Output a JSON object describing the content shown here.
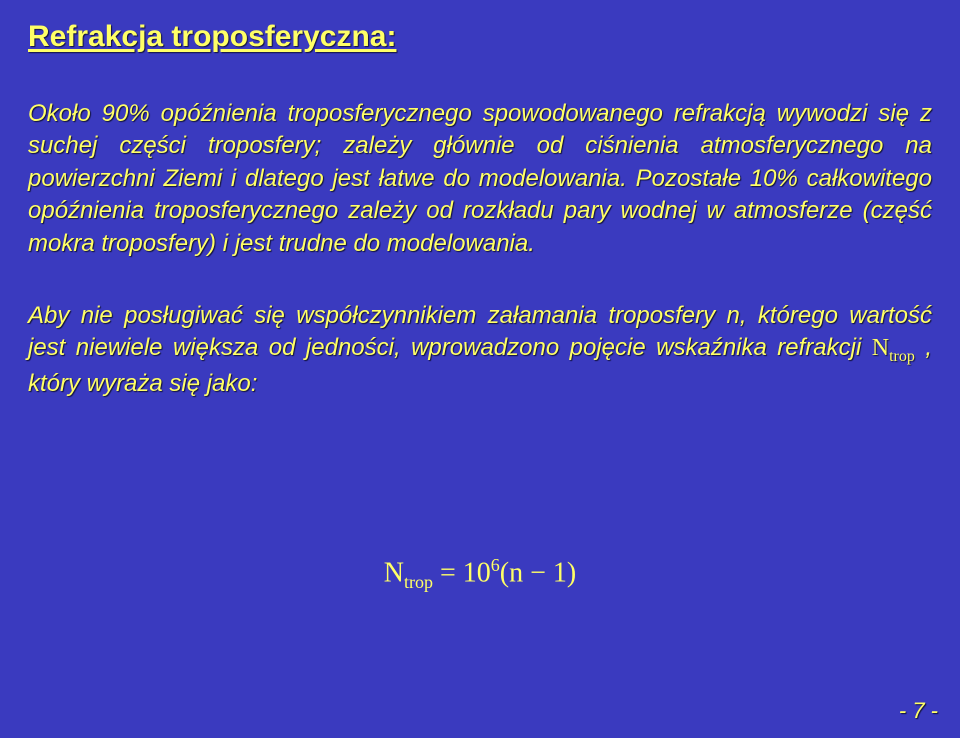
{
  "title": "Refrakcja troposferyczna:",
  "para1": "Około 90% opóźnienia troposferycznego spowodowanego refrakcją wywodzi się z suchej części troposfery; zależy głównie od ciśnienia atmosferycznego na powierzchni Ziemi i dlatego jest łatwe do modelowania. Pozostałe 10% całkowitego opóźnienia troposferycznego zależy od rozkładu pary wodnej w atmosferze (część mokra troposfery) i jest trudne do modelowania.",
  "para2_lead": "Aby nie posługiwać się współczynnikiem załamania troposfery ",
  "para2_n": "n",
  "para2_mid": ", którego wartość jest niewiele większa od jedności, wprowadzono pojęcie wskaźnika refrakcji ",
  "inline_N": "N",
  "inline_sub": "trop",
  "para2_tail": " , który wyraża się jako:",
  "formula": {
    "lhs_sym": "N",
    "lhs_sub": "trop",
    "eq": " = ",
    "base": "10",
    "exp": "6",
    "open": "(",
    "nvar": "n",
    "minus": " − ",
    "one": "1",
    "close": ")"
  },
  "pagenum": "- 7 -",
  "colors": {
    "background": "#3a3abf",
    "text": "#ffff66"
  }
}
